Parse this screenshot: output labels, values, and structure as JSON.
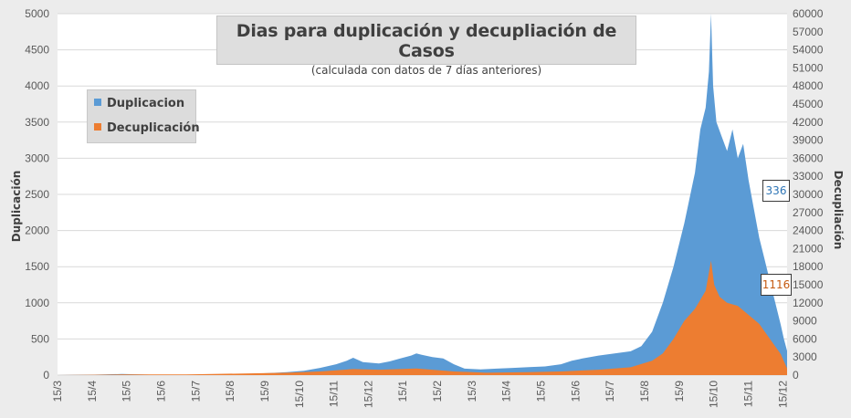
{
  "chart_data": {
    "type": "area",
    "title": "Dias para duplicación y decupliación de Casos",
    "subtitle": "(calculada con datos de 7 días anteriores)",
    "ylabel": "Duplicación",
    "y2label": "Decupliación",
    "ylim": [
      0,
      5000
    ],
    "y2lim": [
      0,
      60000
    ],
    "y_ticks": [
      "0",
      "500",
      "1000",
      "1500",
      "2000",
      "2500",
      "3000",
      "3500",
      "4000",
      "4500",
      "5000"
    ],
    "y2_ticks": [
      "0",
      "3000",
      "6000",
      "9000",
      "12000",
      "15000",
      "18000",
      "21000",
      "24000",
      "27000",
      "30000",
      "33000",
      "36000",
      "39000",
      "42000",
      "45000",
      "48000",
      "51000",
      "54000",
      "57000",
      "60000"
    ],
    "x_ticks": [
      "15/3",
      "15/4",
      "15/5",
      "15/6",
      "15/7",
      "15/8",
      "15/9",
      "15/10",
      "15/11",
      "15/12",
      "15/1",
      "15/2",
      "15/3",
      "15/4",
      "15/5",
      "15/6",
      "15/7",
      "15/8",
      "15/9",
      "15/10",
      "15/11",
      "15/12"
    ],
    "legend_position": "top-left",
    "grid": true,
    "x_index_unit": "days since 15/3 (first x tick)",
    "series": [
      {
        "name": "Duplicacion",
        "color": "#5b9bd5",
        "axis": "left",
        "points": [
          [
            0,
            0
          ],
          [
            30,
            5
          ],
          [
            60,
            15
          ],
          [
            90,
            5
          ],
          [
            120,
            5
          ],
          [
            150,
            10
          ],
          [
            185,
            20
          ],
          [
            200,
            30
          ],
          [
            214,
            40
          ],
          [
            230,
            60
          ],
          [
            245,
            100
          ],
          [
            260,
            150
          ],
          [
            270,
            200
          ],
          [
            276,
            240
          ],
          [
            285,
            180
          ],
          [
            300,
            160
          ],
          [
            310,
            190
          ],
          [
            320,
            230
          ],
          [
            330,
            270
          ],
          [
            335,
            300
          ],
          [
            340,
            280
          ],
          [
            350,
            250
          ],
          [
            360,
            230
          ],
          [
            370,
            150
          ],
          [
            380,
            90
          ],
          [
            395,
            80
          ],
          [
            410,
            90
          ],
          [
            425,
            100
          ],
          [
            440,
            110
          ],
          [
            455,
            120
          ],
          [
            470,
            150
          ],
          [
            480,
            200
          ],
          [
            490,
            230
          ],
          [
            505,
            270
          ],
          [
            520,
            300
          ],
          [
            535,
            330
          ],
          [
            545,
            400
          ],
          [
            555,
            600
          ],
          [
            565,
            1000
          ],
          [
            575,
            1500
          ],
          [
            585,
            2100
          ],
          [
            595,
            2800
          ],
          [
            600,
            3400
          ],
          [
            605,
            3700
          ],
          [
            608,
            4200
          ],
          [
            610,
            5000
          ],
          [
            612,
            4000
          ],
          [
            615,
            3500
          ],
          [
            620,
            3300
          ],
          [
            625,
            3100
          ],
          [
            630,
            3400
          ],
          [
            635,
            3000
          ],
          [
            640,
            3200
          ],
          [
            645,
            2700
          ],
          [
            650,
            2300
          ],
          [
            655,
            1900
          ],
          [
            660,
            1600
          ],
          [
            665,
            1300
          ],
          [
            670,
            1000
          ],
          [
            675,
            700
          ],
          [
            678,
            500
          ],
          [
            681,
            336
          ]
        ]
      },
      {
        "name": "Decuplicación",
        "color": "#ed7d31",
        "axis": "right",
        "points": [
          [
            0,
            0
          ],
          [
            60,
            100
          ],
          [
            120,
            100
          ],
          [
            185,
            300
          ],
          [
            214,
            400
          ],
          [
            245,
            600
          ],
          [
            260,
            800
          ],
          [
            276,
            1000
          ],
          [
            300,
            900
          ],
          [
            320,
            1000
          ],
          [
            335,
            1100
          ],
          [
            350,
            900
          ],
          [
            370,
            600
          ],
          [
            400,
            400
          ],
          [
            440,
            500
          ],
          [
            470,
            600
          ],
          [
            505,
            900
          ],
          [
            535,
            1300
          ],
          [
            555,
            2400
          ],
          [
            565,
            3600
          ],
          [
            575,
            6000
          ],
          [
            585,
            9000
          ],
          [
            595,
            11000
          ],
          [
            600,
            12500
          ],
          [
            605,
            14000
          ],
          [
            610,
            19000
          ],
          [
            613,
            15000
          ],
          [
            618,
            13000
          ],
          [
            625,
            12000
          ],
          [
            635,
            11500
          ],
          [
            645,
            10000
          ],
          [
            655,
            8500
          ],
          [
            665,
            6000
          ],
          [
            675,
            3500
          ],
          [
            681,
            1116
          ]
        ]
      }
    ],
    "annotations": [
      {
        "text": "336",
        "series": "Duplicacion"
      },
      {
        "text": "1116",
        "series": "Decuplicación"
      }
    ]
  }
}
